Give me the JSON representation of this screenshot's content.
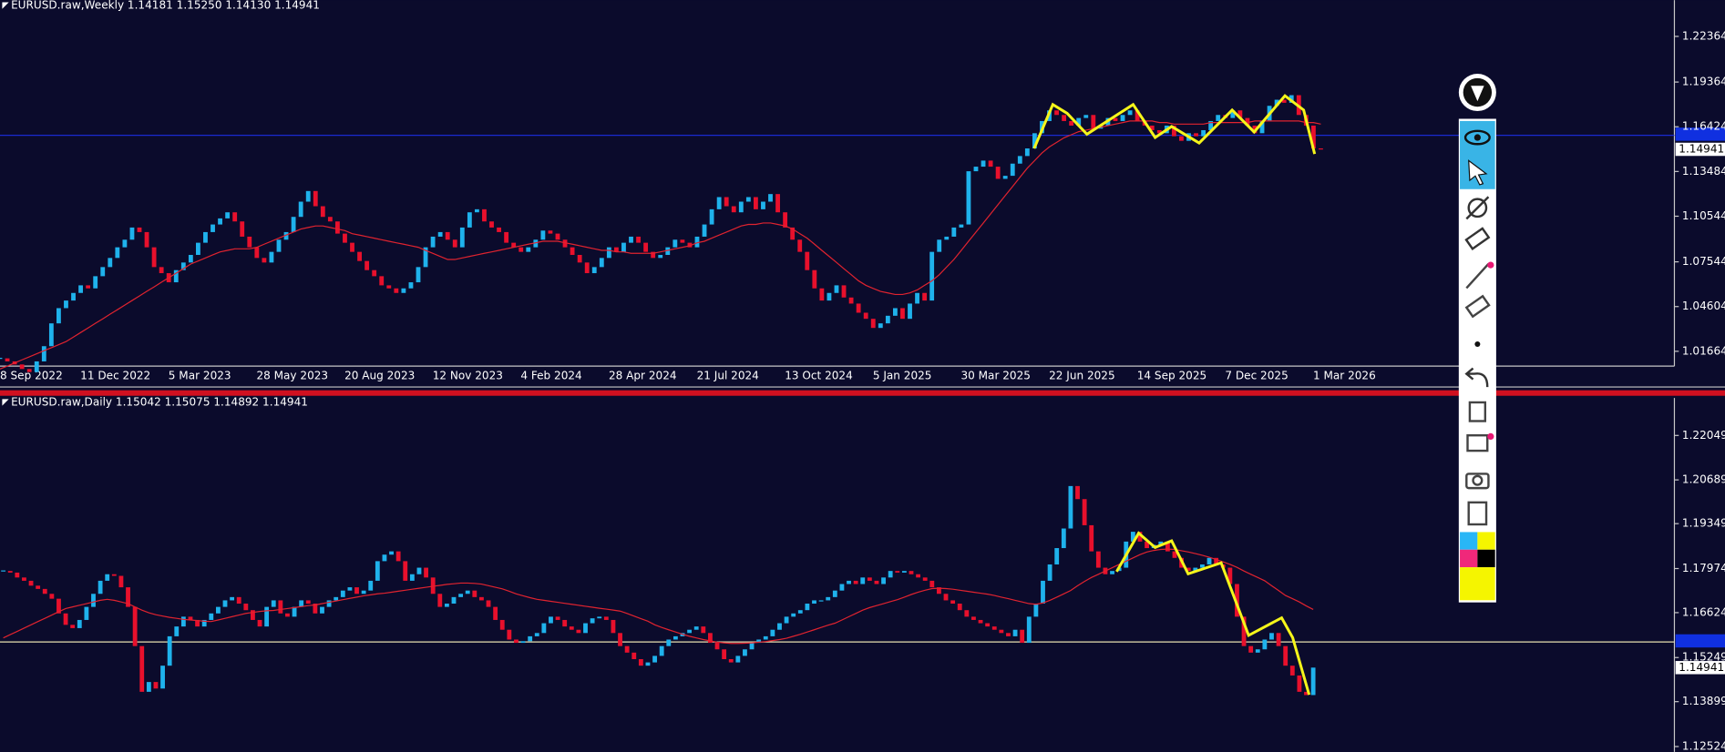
{
  "chart_data": [
    {
      "type": "candlestick",
      "title": "EURUSD.raw,Weekly  1.14181 1.15250 1.14130 1.14941",
      "up_color": "#1fb2ec",
      "down_color": "#e8102c",
      "ma_color": "#e0232f",
      "ylim": [
        1.0069,
        1.2475
      ],
      "yticks": [
        1.22364,
        1.19364,
        1.16424,
        1.13484,
        1.10544,
        1.07544,
        1.04604,
        1.01664
      ],
      "price_label": 1.14941,
      "categories": [
        "8 Sep 2022",
        null,
        null,
        null,
        null,
        null,
        null,
        null,
        null,
        null,
        null,
        null,
        "11 Dec 2022",
        null,
        null,
        null,
        null,
        null,
        null,
        null,
        null,
        null,
        null,
        null,
        "5 Mar 2023",
        null,
        null,
        null,
        null,
        null,
        null,
        null,
        null,
        null,
        null,
        null,
        "28 May 2023",
        null,
        null,
        null,
        null,
        null,
        null,
        null,
        null,
        null,
        null,
        null,
        "20 Aug 2023",
        null,
        null,
        null,
        null,
        null,
        null,
        null,
        null,
        null,
        null,
        null,
        "12 Nov 2023",
        null,
        null,
        null,
        null,
        null,
        null,
        null,
        null,
        null,
        null,
        null,
        "4 Feb 2024",
        null,
        null,
        null,
        null,
        null,
        null,
        null,
        null,
        null,
        null,
        null,
        "28 Apr 2024",
        null,
        null,
        null,
        null,
        null,
        null,
        null,
        null,
        null,
        null,
        null,
        "21 Jul 2024",
        null,
        null,
        null,
        null,
        null,
        null,
        null,
        null,
        null,
        null,
        null,
        "13 Oct 2024",
        null,
        null,
        null,
        null,
        null,
        null,
        null,
        null,
        null,
        null,
        null,
        "5 Jan 2025",
        null,
        null,
        null,
        null,
        null,
        null,
        null,
        null,
        null,
        null,
        null,
        "30 Mar 2025",
        null,
        null,
        null,
        null,
        null,
        null,
        null,
        null,
        null,
        null,
        null,
        "22 Jun 2025",
        null,
        null,
        null,
        null,
        null,
        null,
        null,
        null,
        null,
        null,
        null,
        "14 Sep 2025",
        null,
        null,
        null,
        null,
        null,
        null,
        null,
        null,
        null,
        null,
        null,
        "7 Dec 2025",
        null,
        null,
        null,
        null,
        null,
        null,
        null,
        null,
        null,
        null,
        null,
        "1 Mar 2026"
      ],
      "values": [
        1.012,
        1.01,
        1.008,
        1.005,
        1.003,
        1.01,
        1.02,
        1.035,
        1.045,
        1.05,
        1.055,
        1.06,
        1.058,
        1.066,
        1.072,
        1.078,
        1.085,
        1.09,
        1.098,
        1.095,
        1.085,
        1.072,
        1.068,
        1.062,
        1.07,
        1.075,
        1.08,
        1.088,
        1.095,
        1.1,
        1.104,
        1.108,
        1.102,
        1.092,
        1.085,
        1.078,
        1.075,
        1.082,
        1.09,
        1.095,
        1.105,
        1.115,
        1.122,
        1.112,
        1.105,
        1.102,
        1.094,
        1.088,
        1.082,
        1.076,
        1.07,
        1.066,
        1.06,
        1.058,
        1.055,
        1.058,
        1.062,
        1.072,
        1.085,
        1.092,
        1.095,
        1.09,
        1.085,
        1.098,
        1.108,
        1.11,
        1.102,
        1.098,
        1.095,
        1.088,
        1.085,
        1.082,
        1.085,
        1.09,
        1.096,
        1.094,
        1.09,
        1.085,
        1.08,
        1.075,
        1.068,
        1.072,
        1.078,
        1.085,
        1.082,
        1.088,
        1.092,
        1.088,
        1.082,
        1.078,
        1.08,
        1.085,
        1.09,
        1.088,
        1.085,
        1.092,
        1.1,
        1.11,
        1.118,
        1.112,
        1.108,
        1.115,
        1.118,
        1.11,
        1.115,
        1.12,
        1.108,
        1.098,
        1.09,
        1.082,
        1.07,
        1.058,
        1.05,
        1.055,
        1.06,
        1.052,
        1.048,
        1.042,
        1.038,
        1.032,
        1.035,
        1.04,
        1.045,
        1.038,
        1.048,
        1.055,
        1.05,
        1.082,
        1.09,
        1.092,
        1.098,
        1.1,
        1.135,
        1.138,
        1.142,
        1.138,
        1.13,
        1.132,
        1.14,
        1.145,
        1.15,
        1.16,
        1.168,
        1.175,
        1.172,
        1.168,
        1.165,
        1.17,
        1.172,
        1.163,
        1.165,
        1.17,
        1.168,
        1.172,
        1.175,
        1.168,
        1.165,
        1.162,
        1.16,
        1.165,
        1.158,
        1.155,
        1.16,
        1.158,
        1.162,
        1.168,
        1.172,
        1.17,
        1.175,
        1.17,
        1.165,
        1.16,
        1.168,
        1.178,
        1.182,
        1.18,
        1.185,
        1.172,
        1.165,
        1.15,
        1.14941
      ],
      "ma_values": [
        1.005,
        1.007,
        1.009,
        1.011,
        1.013,
        1.015,
        1.017,
        1.019,
        1.021,
        1.023,
        1.026,
        1.029,
        1.032,
        1.035,
        1.038,
        1.041,
        1.044,
        1.047,
        1.05,
        1.053,
        1.056,
        1.059,
        1.062,
        1.065,
        1.068,
        1.071,
        1.074,
        1.076,
        1.078,
        1.08,
        1.082,
        1.083,
        1.084,
        1.084,
        1.084,
        1.085,
        1.087,
        1.089,
        1.091,
        1.093,
        1.095,
        1.097,
        1.098,
        1.099,
        1.099,
        1.098,
        1.097,
        1.096,
        1.094,
        1.093,
        1.092,
        1.091,
        1.09,
        1.089,
        1.088,
        1.087,
        1.086,
        1.085,
        1.083,
        1.081,
        1.079,
        1.077,
        1.077,
        1.078,
        1.079,
        1.08,
        1.081,
        1.082,
        1.083,
        1.084,
        1.085,
        1.086,
        1.087,
        1.088,
        1.089,
        1.089,
        1.089,
        1.088,
        1.087,
        1.086,
        1.085,
        1.084,
        1.083,
        1.083,
        1.082,
        1.082,
        1.081,
        1.081,
        1.081,
        1.081,
        1.082,
        1.083,
        1.084,
        1.085,
        1.086,
        1.088,
        1.089,
        1.091,
        1.093,
        1.095,
        1.097,
        1.099,
        1.1,
        1.1,
        1.101,
        1.101,
        1.1,
        1.099,
        1.097,
        1.094,
        1.091,
        1.087,
        1.083,
        1.079,
        1.075,
        1.071,
        1.067,
        1.063,
        1.06,
        1.058,
        1.056,
        1.055,
        1.054,
        1.054,
        1.055,
        1.057,
        1.06,
        1.063,
        1.067,
        1.072,
        1.077,
        1.083,
        1.089,
        1.095,
        1.101,
        1.107,
        1.113,
        1.119,
        1.125,
        1.131,
        1.137,
        1.142,
        1.147,
        1.151,
        1.154,
        1.157,
        1.159,
        1.161,
        1.162,
        1.163,
        1.164,
        1.165,
        1.166,
        1.167,
        1.168,
        1.168,
        1.168,
        1.168,
        1.167,
        1.167,
        1.166,
        1.166,
        1.166,
        1.166,
        1.166,
        1.167,
        1.167,
        1.167,
        1.167,
        1.167,
        1.167,
        1.168,
        1.168,
        1.168,
        1.168,
        1.168,
        1.168,
        1.168,
        1.167,
        1.167,
        1.166
      ]
    },
    {
      "type": "candlestick",
      "title": "EURUSD.raw,Daily  1.15042 1.15075 1.14892 1.14941",
      "up_color": "#1fb2ec",
      "down_color": "#e8102c",
      "ma_color": "#e0232f",
      "ylim": [
        1.1236,
        1.2286
      ],
      "yticks": [
        1.22049,
        1.20689,
        1.19349,
        1.17974,
        1.16624,
        1.15249,
        1.13899,
        1.12524
      ],
      "price_label": 1.14941,
      "values": [
        1.179,
        1.1785,
        1.177,
        1.176,
        1.1745,
        1.1735,
        1.172,
        1.1705,
        1.166,
        1.1625,
        1.1615,
        1.164,
        1.168,
        1.172,
        1.176,
        1.178,
        1.1775,
        1.174,
        1.168,
        1.156,
        1.142,
        1.145,
        1.143,
        1.15,
        1.159,
        1.162,
        1.165,
        1.164,
        1.162,
        1.164,
        1.166,
        1.168,
        1.17,
        1.171,
        1.169,
        1.167,
        1.164,
        1.162,
        1.168,
        1.17,
        1.166,
        1.165,
        1.168,
        1.17,
        1.169,
        1.166,
        1.168,
        1.17,
        1.171,
        1.173,
        1.174,
        1.172,
        1.173,
        1.176,
        1.182,
        1.184,
        1.185,
        1.182,
        1.176,
        1.178,
        1.18,
        1.177,
        1.172,
        1.168,
        1.169,
        1.171,
        1.172,
        1.173,
        1.171,
        1.17,
        1.168,
        1.164,
        1.161,
        1.158,
        1.157,
        1.1575,
        1.159,
        1.16,
        1.163,
        1.165,
        1.164,
        1.162,
        1.161,
        1.16,
        1.163,
        1.1645,
        1.165,
        1.164,
        1.16,
        1.156,
        1.154,
        1.152,
        1.15,
        1.151,
        1.153,
        1.156,
        1.158,
        1.159,
        1.16,
        1.161,
        1.162,
        1.16,
        1.157,
        1.155,
        1.152,
        1.151,
        1.153,
        1.155,
        1.157,
        1.158,
        1.159,
        1.161,
        1.163,
        1.165,
        1.166,
        1.167,
        1.169,
        1.17,
        1.17,
        1.171,
        1.173,
        1.175,
        1.176,
        1.175,
        1.177,
        1.176,
        1.175,
        1.177,
        1.179,
        1.1785,
        1.179,
        1.178,
        1.177,
        1.176,
        1.174,
        1.172,
        1.17,
        1.169,
        1.167,
        1.165,
        1.164,
        1.163,
        1.162,
        1.161,
        1.16,
        1.159,
        1.161,
        1.157,
        1.165,
        1.169,
        1.176,
        1.181,
        1.186,
        1.192,
        1.205,
        1.201,
        1.193,
        1.185,
        1.18,
        1.178,
        1.179,
        1.18,
        1.188,
        1.191,
        1.188,
        1.186,
        1.187,
        1.188,
        1.185,
        1.183,
        1.18,
        1.179,
        1.18,
        1.181,
        1.183,
        1.181,
        1.18,
        1.175,
        1.165,
        1.156,
        1.154,
        1.155,
        1.158,
        1.16,
        1.156,
        1.15,
        1.147,
        1.142,
        1.141,
        1.14941
      ],
      "ma_values": [
        1.1585,
        1.1595,
        1.1605,
        1.1615,
        1.1625,
        1.1635,
        1.1645,
        1.1655,
        1.1665,
        1.1675,
        1.168,
        1.1685,
        1.169,
        1.1695,
        1.17,
        1.1703,
        1.17,
        1.1695,
        1.169,
        1.168,
        1.167,
        1.1662,
        1.1656,
        1.1652,
        1.1648,
        1.1645,
        1.1642,
        1.164,
        1.1638,
        1.1636,
        1.1635,
        1.164,
        1.1645,
        1.165,
        1.1655,
        1.166,
        1.1663,
        1.1666,
        1.1668,
        1.1669,
        1.1672,
        1.1675,
        1.1678,
        1.1681,
        1.1684,
        1.1686,
        1.169,
        1.1694,
        1.1698,
        1.1702,
        1.1706,
        1.171,
        1.1714,
        1.1717,
        1.172,
        1.1722,
        1.1725,
        1.1728,
        1.1731,
        1.1734,
        1.1737,
        1.174,
        1.1743,
        1.1746,
        1.1749,
        1.1751,
        1.1753,
        1.1753,
        1.1752,
        1.175,
        1.1745,
        1.174,
        1.1735,
        1.1728,
        1.172,
        1.1714,
        1.1708,
        1.1703,
        1.17,
        1.1697,
        1.1694,
        1.1691,
        1.1688,
        1.1685,
        1.1682,
        1.1679,
        1.1676,
        1.1673,
        1.167,
        1.1667,
        1.166,
        1.1652,
        1.1644,
        1.1636,
        1.1625,
        1.1617,
        1.161,
        1.1603,
        1.1596,
        1.159,
        1.1585,
        1.158,
        1.1576,
        1.1572,
        1.157,
        1.1568,
        1.1568,
        1.1569,
        1.157,
        1.1572,
        1.1574,
        1.1577,
        1.158,
        1.1584,
        1.159,
        1.1596,
        1.1603,
        1.161,
        1.1617,
        1.1624,
        1.163,
        1.164,
        1.165,
        1.166,
        1.167,
        1.1678,
        1.1684,
        1.169,
        1.1696,
        1.1702,
        1.171,
        1.1718,
        1.1725,
        1.1731,
        1.1736,
        1.1737,
        1.1736,
        1.1734,
        1.1731,
        1.1728,
        1.1725,
        1.1722,
        1.1719,
        1.1715,
        1.171,
        1.1705,
        1.17,
        1.1695,
        1.169,
        1.1688,
        1.1692,
        1.17,
        1.171,
        1.172,
        1.173,
        1.1745,
        1.1758,
        1.177,
        1.178,
        1.179,
        1.18,
        1.181,
        1.182,
        1.183,
        1.184,
        1.1848,
        1.1853,
        1.1856,
        1.1857,
        1.1856,
        1.1852,
        1.1848,
        1.1843,
        1.1838,
        1.1832,
        1.1825,
        1.1818,
        1.181,
        1.1801,
        1.179,
        1.178,
        1.177,
        1.176,
        1.1745,
        1.173,
        1.1715,
        1.1705,
        1.1695,
        1.1683,
        1.1672
      ]
    }
  ]
}
